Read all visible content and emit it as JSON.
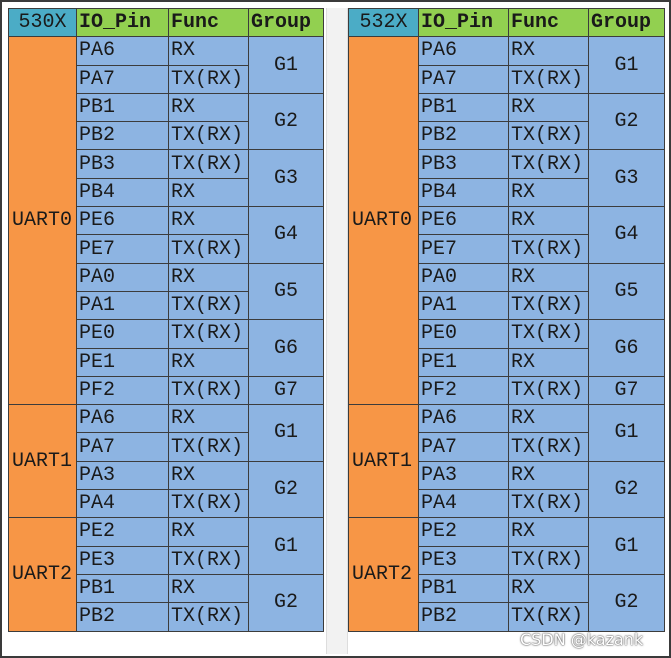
{
  "tables": [
    {
      "header": [
        "530X",
        "IO_Pin",
        "Func",
        "Group"
      ],
      "uarts": [
        {
          "name": "UART0",
          "groups": [
            {
              "name": "G1",
              "pins": [
                {
                  "pin": "PA6",
                  "func": "RX"
                },
                {
                  "pin": "PA7",
                  "func": "TX(RX)"
                }
              ]
            },
            {
              "name": "G2",
              "pins": [
                {
                  "pin": "PB1",
                  "func": "RX"
                },
                {
                  "pin": "PB2",
                  "func": "TX(RX)"
                }
              ]
            },
            {
              "name": "G3",
              "pins": [
                {
                  "pin": "PB3",
                  "func": "TX(RX)"
                },
                {
                  "pin": "PB4",
                  "func": "RX"
                }
              ]
            },
            {
              "name": "G4",
              "pins": [
                {
                  "pin": "PE6",
                  "func": "RX"
                },
                {
                  "pin": "PE7",
                  "func": "TX(RX)"
                }
              ]
            },
            {
              "name": "G5",
              "pins": [
                {
                  "pin": "PA0",
                  "func": "RX"
                },
                {
                  "pin": "PA1",
                  "func": "TX(RX)"
                }
              ]
            },
            {
              "name": "G6",
              "pins": [
                {
                  "pin": "PE0",
                  "func": "TX(RX)"
                },
                {
                  "pin": "PE1",
                  "func": "RX"
                }
              ]
            },
            {
              "name": "G7",
              "pins": [
                {
                  "pin": "PF2",
                  "func": "TX(RX)"
                }
              ]
            }
          ]
        },
        {
          "name": "UART1",
          "groups": [
            {
              "name": "G1",
              "pins": [
                {
                  "pin": "PA6",
                  "func": "RX"
                },
                {
                  "pin": "PA7",
                  "func": "TX(RX)"
                }
              ]
            },
            {
              "name": "G2",
              "pins": [
                {
                  "pin": "PA3",
                  "func": "RX"
                },
                {
                  "pin": "PA4",
                  "func": "TX(RX)"
                }
              ]
            }
          ]
        },
        {
          "name": "UART2",
          "groups": [
            {
              "name": "G1",
              "pins": [
                {
                  "pin": "PE2",
                  "func": "RX"
                },
                {
                  "pin": "PE3",
                  "func": "TX(RX)"
                }
              ]
            },
            {
              "name": "G2",
              "pins": [
                {
                  "pin": "PB1",
                  "func": "RX"
                },
                {
                  "pin": "PB2",
                  "func": "TX(RX)"
                }
              ]
            }
          ]
        }
      ]
    },
    {
      "header": [
        "532X",
        "IO_Pin",
        "Func",
        "Group"
      ],
      "uarts": [
        {
          "name": "UART0",
          "groups": [
            {
              "name": "G1",
              "pins": [
                {
                  "pin": "PA6",
                  "func": "RX"
                },
                {
                  "pin": "PA7",
                  "func": "TX(RX)"
                }
              ]
            },
            {
              "name": "G2",
              "pins": [
                {
                  "pin": "PB1",
                  "func": "RX"
                },
                {
                  "pin": "PB2",
                  "func": "TX(RX)"
                }
              ]
            },
            {
              "name": "G3",
              "pins": [
                {
                  "pin": "PB3",
                  "func": "TX(RX)"
                },
                {
                  "pin": "PB4",
                  "func": "RX"
                }
              ]
            },
            {
              "name": "G4",
              "pins": [
                {
                  "pin": "PE6",
                  "func": "RX"
                },
                {
                  "pin": "PE7",
                  "func": "TX(RX)"
                }
              ]
            },
            {
              "name": "G5",
              "pins": [
                {
                  "pin": "PA0",
                  "func": "RX"
                },
                {
                  "pin": "PA1",
                  "func": "TX(RX)"
                }
              ]
            },
            {
              "name": "G6",
              "pins": [
                {
                  "pin": "PE0",
                  "func": "TX(RX)"
                },
                {
                  "pin": "PE1",
                  "func": "RX"
                }
              ]
            },
            {
              "name": "G7",
              "pins": [
                {
                  "pin": "PF2",
                  "func": "TX(RX)"
                }
              ]
            }
          ]
        },
        {
          "name": "UART1",
          "groups": [
            {
              "name": "G1",
              "pins": [
                {
                  "pin": "PA6",
                  "func": "RX"
                },
                {
                  "pin": "PA7",
                  "func": "TX(RX)"
                }
              ]
            },
            {
              "name": "G2",
              "pins": [
                {
                  "pin": "PA3",
                  "func": "RX"
                },
                {
                  "pin": "PA4",
                  "func": "TX(RX)"
                }
              ]
            }
          ]
        },
        {
          "name": "UART2",
          "groups": [
            {
              "name": "G1",
              "pins": [
                {
                  "pin": "PE2",
                  "func": "RX"
                },
                {
                  "pin": "PE3",
                  "func": "TX(RX)"
                }
              ]
            },
            {
              "name": "G2",
              "pins": [
                {
                  "pin": "PB1",
                  "func": "RX"
                },
                {
                  "pin": "PB2",
                  "func": "TX(RX)"
                }
              ]
            }
          ]
        }
      ]
    }
  ],
  "watermark": "CSDN @kazank"
}
